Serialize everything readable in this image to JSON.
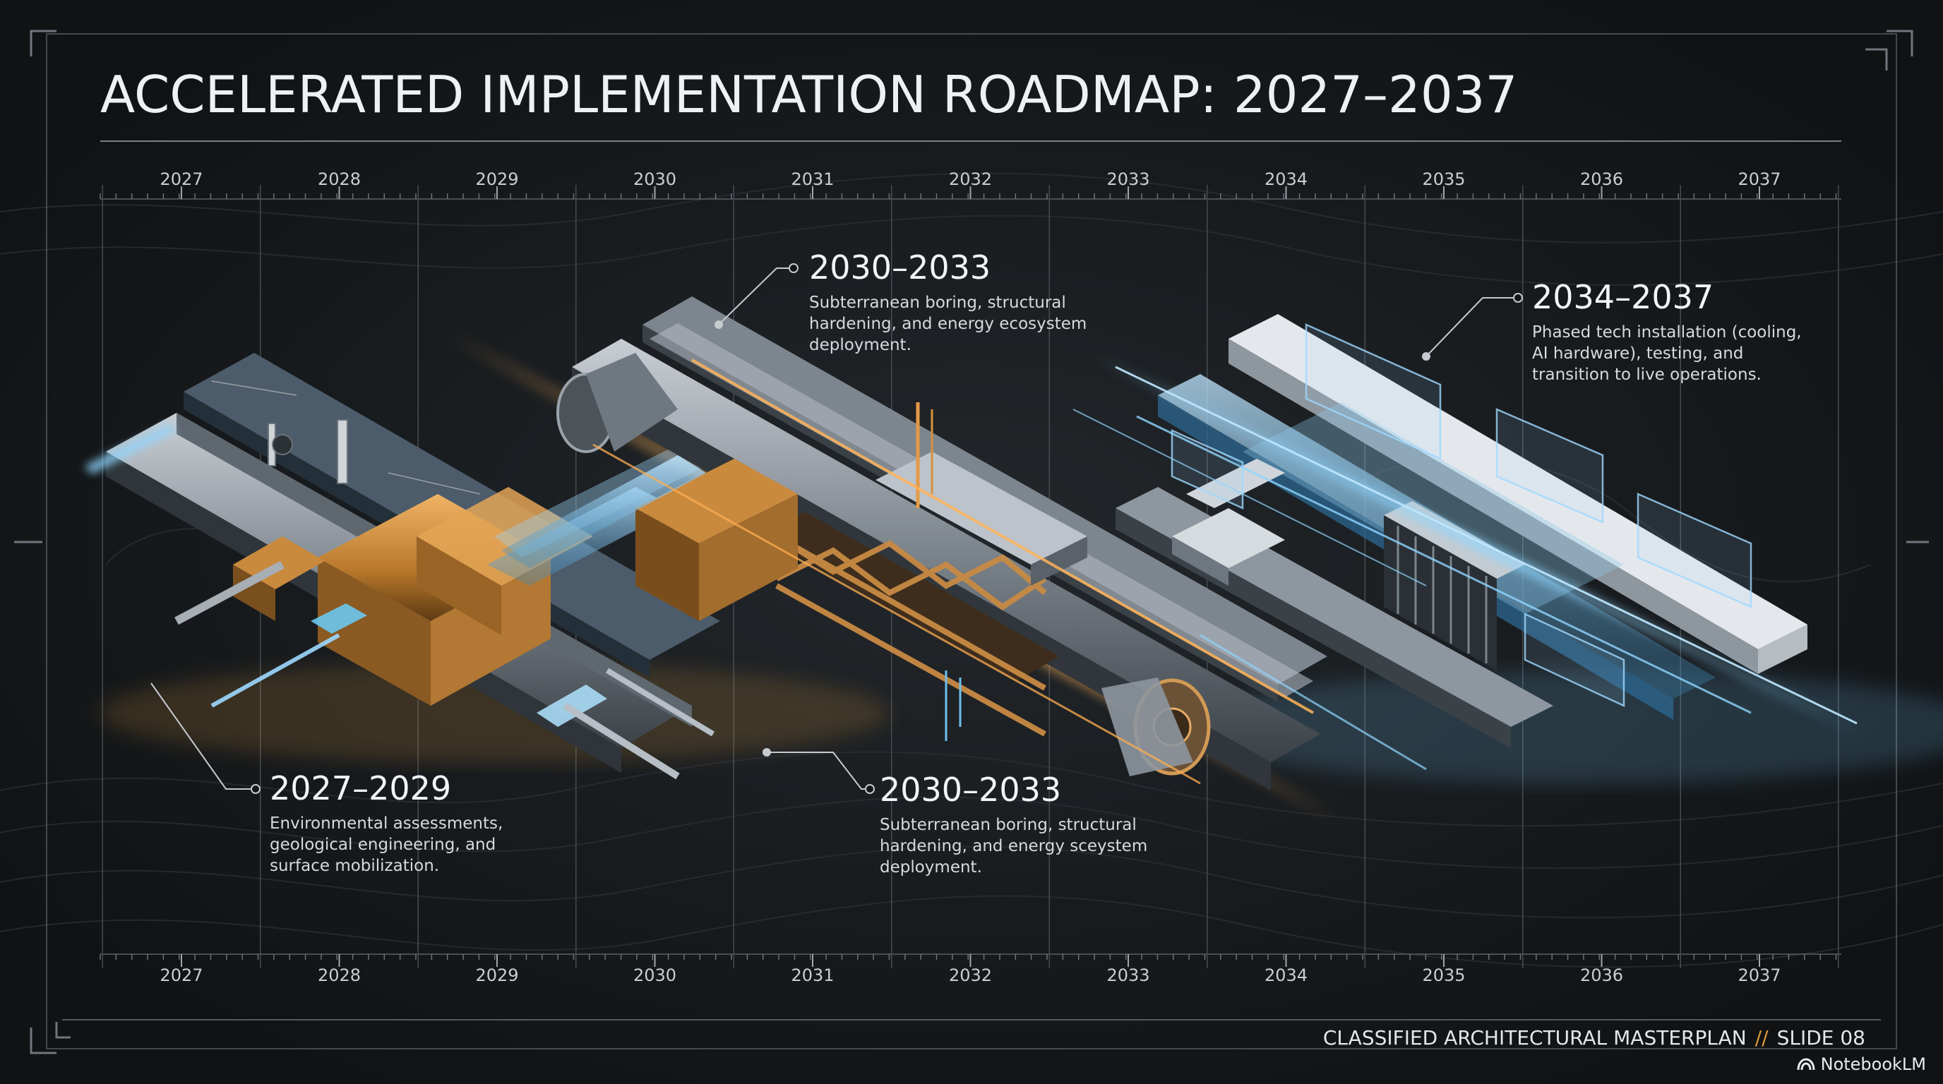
{
  "title": "ACCELERATED IMPLEMENTATION ROADMAP: 2027–2037",
  "timeline": {
    "years": [
      "2027",
      "2028",
      "2029",
      "2030",
      "2031",
      "2032",
      "2033",
      "2034",
      "2035",
      "2036",
      "2037"
    ]
  },
  "phases": [
    {
      "range": "2027–2029",
      "description": "Environmental assessments, geological engineering, and surface mobilization.",
      "color": "#d99a3c"
    },
    {
      "range": "2030–2033",
      "description": "Subterranean boring, structural hardening, and energy ecosystem deployment.",
      "color": "#e8a24a"
    },
    {
      "range": "2030–2033",
      "description": "Subterranean boring, structural hardening, and energy sceystem deployment.",
      "color": "#e8a24a"
    },
    {
      "range": "2034–2037",
      "description": "Phased tech installation (cooling, AI hardware), testing, and transition to live operations.",
      "color": "#7cc4ee"
    }
  ],
  "footer": {
    "label": "CLASSIFIED ARCHITECTURAL MASTERPLAN",
    "separator": "//",
    "slide": "SLIDE 08"
  },
  "brand": {
    "name": "NotebookLM",
    "icon": "notebooklm-logo-icon"
  },
  "colors": {
    "background": "#141618",
    "copper": "#d99a3c",
    "cyan": "#7cc4ee",
    "frame": "#8a9096"
  }
}
